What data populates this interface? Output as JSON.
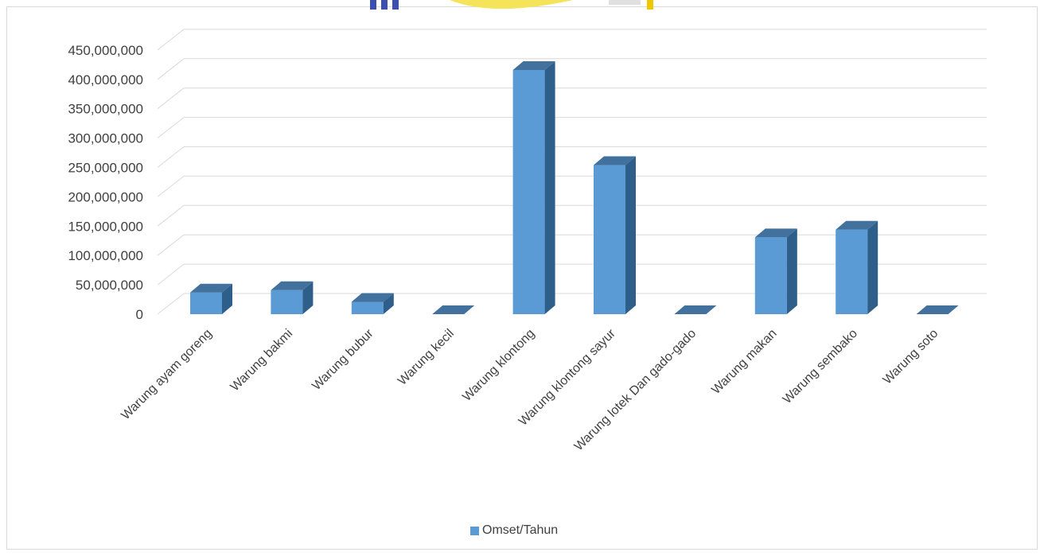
{
  "chart_data": {
    "type": "bar",
    "style": "3d-column",
    "categories": [
      "Warung ayam goreng",
      "Warung bakmi",
      "Warung bubur",
      "Warung kecil",
      "Warung klontong",
      "Warung klontong sayur",
      "Warung lotek Dan gado-gado",
      "Warung makan",
      "Warung sembako",
      "Warung soto"
    ],
    "series": [
      {
        "name": "Omset/Tahun",
        "values": [
          37000000,
          41000000,
          21000000,
          0,
          416000000,
          254000000,
          0,
          131000000,
          144000000,
          0
        ]
      }
    ],
    "ylim": [
      0,
      450000000
    ],
    "yticks": [
      "0",
      "50,000,000",
      "100,000,000",
      "150,000,000",
      "200,000,000",
      "250,000,000",
      "300,000,000",
      "350,000,000",
      "400,000,000",
      "450,000,000"
    ],
    "grid": true,
    "legend_position": "bottom",
    "colors": {
      "bar_front": "#5b9bd5",
      "bar_side": "#2e5f8a",
      "bar_top": "#41719c",
      "grid": "#d9d9d9"
    }
  },
  "legend": {
    "label": "Omset/Tahun"
  }
}
